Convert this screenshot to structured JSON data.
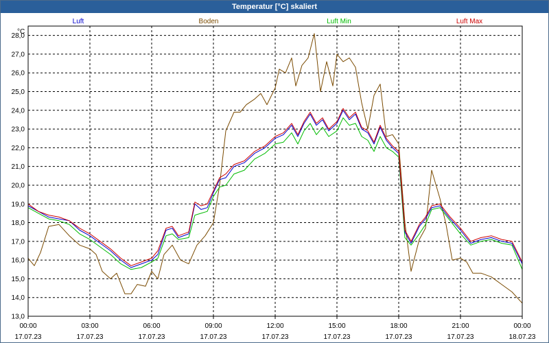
{
  "chart_data": {
    "type": "line",
    "title": "Temperatur [°C] skaliert",
    "ylabel": "°C",
    "ylim": [
      13.0,
      28.5
    ],
    "yticks": [
      "13,0",
      "14,0",
      "15,0",
      "16,0",
      "17,0",
      "18,0",
      "19,0",
      "20,0",
      "21,0",
      "22,0",
      "23,0",
      "24,0",
      "25,0",
      "26,0",
      "27,0",
      "28,0"
    ],
    "xlim_hours": [
      0,
      24
    ],
    "xticks": [
      {
        "time": "00:00",
        "date": "17.07.23"
      },
      {
        "time": "03:00",
        "date": "17.07.23"
      },
      {
        "time": "06:00",
        "date": "17.07.23"
      },
      {
        "time": "09:00",
        "date": "17.07.23"
      },
      {
        "time": "12:00",
        "date": "17.07.23"
      },
      {
        "time": "15:00",
        "date": "17.07.23"
      },
      {
        "time": "18:00",
        "date": "17.07.23"
      },
      {
        "time": "21:00",
        "date": "17.07.23"
      },
      {
        "time": "00:00",
        "date": "18.07.23"
      }
    ],
    "grid": true,
    "legend_position": "top",
    "series": [
      {
        "name": "Luft",
        "color": "#0000cc",
        "points": [
          [
            0,
            18.9
          ],
          [
            0.5,
            18.6
          ],
          [
            1,
            18.3
          ],
          [
            1.5,
            18.2
          ],
          [
            2,
            18.1
          ],
          [
            2.5,
            17.6
          ],
          [
            3,
            17.3
          ],
          [
            3.5,
            16.9
          ],
          [
            4,
            16.5
          ],
          [
            4.5,
            16.0
          ],
          [
            5,
            15.6
          ],
          [
            5.5,
            15.8
          ],
          [
            6,
            16.0
          ],
          [
            6.3,
            16.3
          ],
          [
            6.7,
            17.6
          ],
          [
            7,
            17.7
          ],
          [
            7.3,
            17.2
          ],
          [
            7.8,
            17.4
          ],
          [
            8.1,
            19.0
          ],
          [
            8.4,
            18.7
          ],
          [
            8.7,
            18.8
          ],
          [
            9,
            19.6
          ],
          [
            9.3,
            20.3
          ],
          [
            9.6,
            20.4
          ],
          [
            10,
            21.0
          ],
          [
            10.5,
            21.2
          ],
          [
            11,
            21.7
          ],
          [
            11.5,
            22.0
          ],
          [
            12,
            22.5
          ],
          [
            12.4,
            22.7
          ],
          [
            12.8,
            23.2
          ],
          [
            13.1,
            22.6
          ],
          [
            13.4,
            23.3
          ],
          [
            13.7,
            23.8
          ],
          [
            14,
            23.2
          ],
          [
            14.3,
            23.5
          ],
          [
            14.6,
            22.9
          ],
          [
            15,
            23.3
          ],
          [
            15.3,
            24.0
          ],
          [
            15.6,
            23.5
          ],
          [
            15.9,
            23.8
          ],
          [
            16.2,
            23.0
          ],
          [
            16.5,
            22.8
          ],
          [
            16.8,
            22.2
          ],
          [
            17.1,
            23.1
          ],
          [
            17.4,
            22.4
          ],
          [
            17.7,
            22.0
          ],
          [
            18,
            21.7
          ],
          [
            18.3,
            17.5
          ],
          [
            18.6,
            16.9
          ],
          [
            19,
            17.8
          ],
          [
            19.3,
            18.2
          ],
          [
            19.6,
            18.8
          ],
          [
            20,
            18.9
          ],
          [
            20.5,
            18.2
          ],
          [
            21,
            17.6
          ],
          [
            21.5,
            16.9
          ],
          [
            22,
            17.1
          ],
          [
            22.5,
            17.2
          ],
          [
            23,
            17.0
          ],
          [
            23.5,
            16.9
          ],
          [
            24,
            15.8
          ]
        ]
      },
      {
        "name": "Boden",
        "color": "#7a4a00",
        "points": [
          [
            0,
            16.1
          ],
          [
            0.3,
            15.7
          ],
          [
            0.6,
            16.4
          ],
          [
            1,
            17.8
          ],
          [
            1.5,
            17.9
          ],
          [
            2,
            17.3
          ],
          [
            2.5,
            16.8
          ],
          [
            3,
            16.6
          ],
          [
            3.3,
            16.3
          ],
          [
            3.6,
            15.4
          ],
          [
            4,
            15.0
          ],
          [
            4.3,
            15.3
          ],
          [
            4.7,
            14.2
          ],
          [
            5,
            14.2
          ],
          [
            5.3,
            14.7
          ],
          [
            5.7,
            14.6
          ],
          [
            6,
            15.4
          ],
          [
            6.3,
            15.0
          ],
          [
            6.6,
            16.3
          ],
          [
            7,
            16.8
          ],
          [
            7.4,
            16.0
          ],
          [
            7.8,
            15.8
          ],
          [
            8.2,
            16.8
          ],
          [
            8.6,
            17.3
          ],
          [
            9,
            18.0
          ],
          [
            9.3,
            20.0
          ],
          [
            9.6,
            22.9
          ],
          [
            10,
            23.9
          ],
          [
            10.3,
            23.9
          ],
          [
            10.6,
            24.3
          ],
          [
            11,
            24.6
          ],
          [
            11.3,
            24.9
          ],
          [
            11.6,
            24.3
          ],
          [
            12,
            25.2
          ],
          [
            12.2,
            26.2
          ],
          [
            12.5,
            26.0
          ],
          [
            12.8,
            26.8
          ],
          [
            13,
            25.3
          ],
          [
            13.3,
            26.4
          ],
          [
            13.6,
            26.8
          ],
          [
            13.9,
            28.1
          ],
          [
            14.2,
            25.0
          ],
          [
            14.5,
            26.6
          ],
          [
            14.8,
            25.3
          ],
          [
            15,
            27.0
          ],
          [
            15.3,
            26.6
          ],
          [
            15.6,
            26.8
          ],
          [
            15.9,
            26.3
          ],
          [
            16.2,
            24.4
          ],
          [
            16.5,
            23.0
          ],
          [
            16.8,
            24.8
          ],
          [
            17.1,
            25.4
          ],
          [
            17.4,
            22.6
          ],
          [
            17.7,
            22.7
          ],
          [
            18,
            22.2
          ],
          [
            18.3,
            18.0
          ],
          [
            18.6,
            15.4
          ],
          [
            19,
            17.1
          ],
          [
            19.3,
            17.7
          ],
          [
            19.6,
            20.8
          ],
          [
            20,
            19.3
          ],
          [
            20.3,
            17.9
          ],
          [
            20.6,
            16.0
          ],
          [
            21,
            16.1
          ],
          [
            21.3,
            15.9
          ],
          [
            21.6,
            15.3
          ],
          [
            22,
            15.3
          ],
          [
            22.5,
            15.1
          ],
          [
            23,
            14.7
          ],
          [
            23.5,
            14.3
          ],
          [
            24,
            13.7
          ]
        ]
      },
      {
        "name": "Luft Min",
        "color": "#00bb00",
        "points": [
          [
            0,
            18.8
          ],
          [
            0.5,
            18.5
          ],
          [
            1,
            18.2
          ],
          [
            1.5,
            18.1
          ],
          [
            2,
            17.9
          ],
          [
            2.5,
            17.4
          ],
          [
            3,
            17.1
          ],
          [
            3.5,
            16.7
          ],
          [
            4,
            16.3
          ],
          [
            4.5,
            15.8
          ],
          [
            5,
            15.5
          ],
          [
            5.5,
            15.6
          ],
          [
            6,
            15.9
          ],
          [
            6.3,
            16.1
          ],
          [
            6.7,
            17.3
          ],
          [
            7,
            17.4
          ],
          [
            7.3,
            17.1
          ],
          [
            7.8,
            17.2
          ],
          [
            8.1,
            18.4
          ],
          [
            8.4,
            18.5
          ],
          [
            8.7,
            18.6
          ],
          [
            9,
            19.4
          ],
          [
            9.3,
            19.9
          ],
          [
            9.6,
            20.0
          ],
          [
            10,
            20.6
          ],
          [
            10.5,
            20.8
          ],
          [
            11,
            21.4
          ],
          [
            11.5,
            21.7
          ],
          [
            12,
            22.2
          ],
          [
            12.4,
            22.3
          ],
          [
            12.8,
            22.8
          ],
          [
            13.1,
            22.2
          ],
          [
            13.4,
            22.9
          ],
          [
            13.7,
            23.3
          ],
          [
            14,
            22.7
          ],
          [
            14.3,
            23.1
          ],
          [
            14.6,
            22.6
          ],
          [
            15,
            22.9
          ],
          [
            15.3,
            23.6
          ],
          [
            15.6,
            23.2
          ],
          [
            15.9,
            23.3
          ],
          [
            16.2,
            22.6
          ],
          [
            16.5,
            22.4
          ],
          [
            16.8,
            21.8
          ],
          [
            17.1,
            22.6
          ],
          [
            17.4,
            22.0
          ],
          [
            17.7,
            21.8
          ],
          [
            18,
            21.5
          ],
          [
            18.3,
            17.2
          ],
          [
            18.6,
            16.8
          ],
          [
            19,
            17.4
          ],
          [
            19.3,
            17.9
          ],
          [
            19.6,
            18.7
          ],
          [
            20,
            18.8
          ],
          [
            20.5,
            18.1
          ],
          [
            21,
            17.4
          ],
          [
            21.5,
            16.8
          ],
          [
            22,
            17.0
          ],
          [
            22.5,
            17.1
          ],
          [
            23,
            16.9
          ],
          [
            23.5,
            16.8
          ],
          [
            24,
            15.5
          ]
        ]
      },
      {
        "name": "Luft Max",
        "color": "#cc0000",
        "points": [
          [
            0,
            19.0
          ],
          [
            0.5,
            18.6
          ],
          [
            1,
            18.4
          ],
          [
            1.5,
            18.3
          ],
          [
            2,
            18.1
          ],
          [
            2.5,
            17.7
          ],
          [
            3,
            17.4
          ],
          [
            3.5,
            17.0
          ],
          [
            4,
            16.6
          ],
          [
            4.5,
            16.1
          ],
          [
            5,
            15.7
          ],
          [
            5.5,
            15.9
          ],
          [
            6,
            16.1
          ],
          [
            6.3,
            16.5
          ],
          [
            6.7,
            17.7
          ],
          [
            7,
            17.8
          ],
          [
            7.3,
            17.3
          ],
          [
            7.8,
            17.5
          ],
          [
            8.1,
            19.1
          ],
          [
            8.4,
            18.9
          ],
          [
            8.7,
            19.0
          ],
          [
            9,
            19.7
          ],
          [
            9.3,
            20.4
          ],
          [
            9.6,
            20.6
          ],
          [
            10,
            21.1
          ],
          [
            10.5,
            21.3
          ],
          [
            11,
            21.8
          ],
          [
            11.5,
            22.1
          ],
          [
            12,
            22.6
          ],
          [
            12.4,
            22.8
          ],
          [
            12.8,
            23.3
          ],
          [
            13.1,
            22.7
          ],
          [
            13.4,
            23.4
          ],
          [
            13.7,
            23.9
          ],
          [
            14,
            23.3
          ],
          [
            14.3,
            23.6
          ],
          [
            14.6,
            23.0
          ],
          [
            15,
            23.4
          ],
          [
            15.3,
            24.1
          ],
          [
            15.6,
            23.6
          ],
          [
            15.9,
            23.9
          ],
          [
            16.2,
            23.1
          ],
          [
            16.5,
            22.9
          ],
          [
            16.8,
            22.3
          ],
          [
            17.1,
            23.2
          ],
          [
            17.4,
            22.5
          ],
          [
            17.7,
            22.1
          ],
          [
            18,
            21.8
          ],
          [
            18.3,
            17.6
          ],
          [
            18.6,
            17.0
          ],
          [
            19,
            17.9
          ],
          [
            19.3,
            18.3
          ],
          [
            19.6,
            18.9
          ],
          [
            20,
            19.0
          ],
          [
            20.5,
            18.3
          ],
          [
            21,
            17.7
          ],
          [
            21.5,
            17.0
          ],
          [
            22,
            17.2
          ],
          [
            22.5,
            17.3
          ],
          [
            23,
            17.1
          ],
          [
            23.5,
            17.0
          ],
          [
            24,
            15.9
          ]
        ]
      }
    ]
  }
}
